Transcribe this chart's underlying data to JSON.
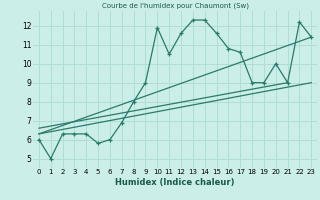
{
  "title": "Courbe de l'humidex pour Chaumont (Sw)",
  "xlabel": "Humidex (Indice chaleur)",
  "bg_color": "#cceee8",
  "grid_color": "#b0ddd8",
  "line_color": "#2a7a6a",
  "x_data": [
    0,
    1,
    2,
    3,
    4,
    5,
    6,
    7,
    8,
    9,
    10,
    11,
    12,
    13,
    14,
    15,
    16,
    17,
    18,
    19,
    20,
    21,
    22,
    23
  ],
  "y_main": [
    6.0,
    5.0,
    6.3,
    6.3,
    6.3,
    5.8,
    6.0,
    6.9,
    8.0,
    9.0,
    11.9,
    10.5,
    11.6,
    12.3,
    12.3,
    11.6,
    10.8,
    10.6,
    9.0,
    9.0,
    10.0,
    9.0,
    12.2,
    11.4
  ],
  "line1": [
    [
      0,
      6.3
    ],
    [
      23,
      9.0
    ]
  ],
  "line2": [
    [
      0,
      6.3
    ],
    [
      23,
      11.4
    ]
  ],
  "line3": [
    [
      0,
      6.6
    ],
    [
      21,
      9.0
    ]
  ],
  "xlim": [
    -0.5,
    23.5
  ],
  "ylim": [
    4.5,
    12.8
  ],
  "yticks": [
    5,
    6,
    7,
    8,
    9,
    10,
    11,
    12
  ],
  "xticks": [
    0,
    1,
    2,
    3,
    4,
    5,
    6,
    7,
    8,
    9,
    10,
    11,
    12,
    13,
    14,
    15,
    16,
    17,
    18,
    19,
    20,
    21,
    22,
    23
  ]
}
